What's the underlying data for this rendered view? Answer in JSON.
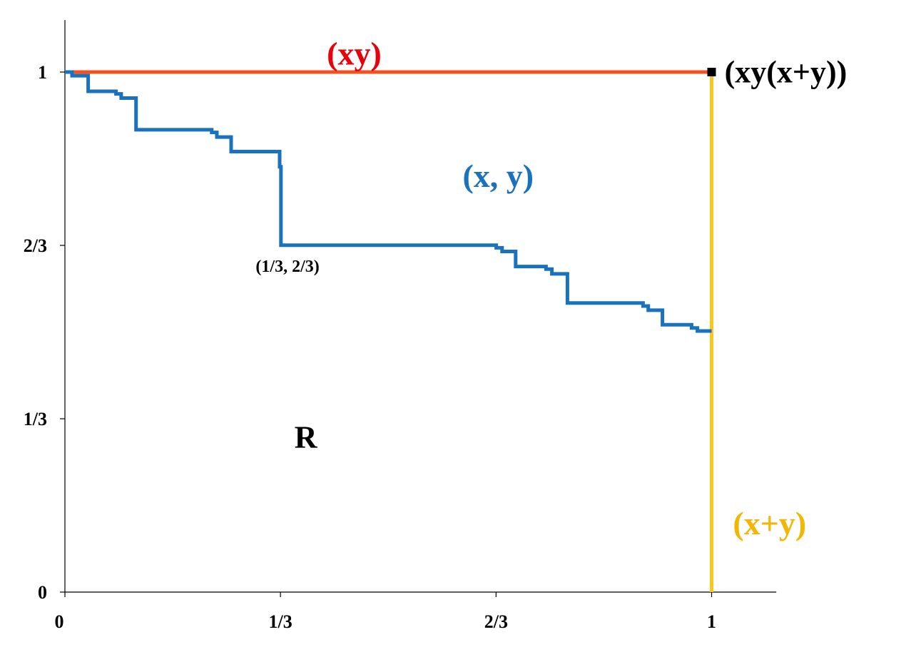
{
  "chart_data": {
    "type": "line",
    "title": "",
    "xlabel": "",
    "ylabel": "",
    "xlim": [
      0,
      1.1
    ],
    "ylim": [
      0,
      1.1
    ],
    "grid": false,
    "x_ticks": [
      {
        "value": 0,
        "label": "0"
      },
      {
        "value": 0.3333,
        "label": "1/3"
      },
      {
        "value": 0.6667,
        "label": "2/3"
      },
      {
        "value": 1,
        "label": "1"
      }
    ],
    "y_ticks": [
      {
        "value": 0,
        "label": "0"
      },
      {
        "value": 0.3333,
        "label": "1/3"
      },
      {
        "value": 0.6667,
        "label": "2/3"
      },
      {
        "value": 1,
        "label": "1"
      }
    ],
    "series": [
      {
        "name": "(xy)",
        "color": "#F4511E",
        "points": [
          [
            0,
            1
          ],
          [
            1,
            1
          ]
        ]
      },
      {
        "name": "(x+y)",
        "color": "#F9C81E",
        "points": [
          [
            1,
            0
          ],
          [
            1,
            1
          ]
        ]
      },
      {
        "name": "(x, y)",
        "color": "#1A72BF",
        "step": true,
        "points": [
          [
            0,
            1
          ],
          [
            0.011,
            1
          ],
          [
            0.011,
            0.993
          ],
          [
            0.036,
            0.993
          ],
          [
            0.036,
            0.963
          ],
          [
            0.079,
            0.963
          ],
          [
            0.079,
            0.958
          ],
          [
            0.087,
            0.958
          ],
          [
            0.087,
            0.95
          ],
          [
            0.11,
            0.95
          ],
          [
            0.11,
            0.889
          ],
          [
            0.227,
            0.889
          ],
          [
            0.227,
            0.884
          ],
          [
            0.235,
            0.884
          ],
          [
            0.235,
            0.875
          ],
          [
            0.257,
            0.875
          ],
          [
            0.257,
            0.847
          ],
          [
            0.332,
            0.847
          ],
          [
            0.332,
            0.818
          ],
          [
            0.334,
            0.818
          ],
          [
            0.334,
            0.667
          ],
          [
            0.667,
            0.667
          ],
          [
            0.667,
            0.662
          ],
          [
            0.676,
            0.662
          ],
          [
            0.676,
            0.655
          ],
          [
            0.697,
            0.655
          ],
          [
            0.697,
            0.626
          ],
          [
            0.744,
            0.626
          ],
          [
            0.744,
            0.621
          ],
          [
            0.753,
            0.621
          ],
          [
            0.753,
            0.612
          ],
          [
            0.777,
            0.612
          ],
          [
            0.777,
            0.556
          ],
          [
            0.894,
            0.556
          ],
          [
            0.894,
            0.55
          ],
          [
            0.902,
            0.55
          ],
          [
            0.902,
            0.542
          ],
          [
            0.924,
            0.542
          ],
          [
            0.924,
            0.514
          ],
          [
            0.969,
            0.514
          ],
          [
            0.969,
            0.508
          ],
          [
            0.978,
            0.508
          ],
          [
            0.978,
            0.502
          ],
          [
            1.0,
            0.502
          ]
        ]
      }
    ],
    "marker": {
      "x": 1,
      "y": 1,
      "label": "(xy(x+y))",
      "color": "#000000"
    },
    "annotations": [
      {
        "text": "(xy)",
        "x": 0.405,
        "y": 1.035,
        "color": "#E8000B",
        "size": 46
      },
      {
        "text": "(xy(x+y))",
        "x": 1.02,
        "y": 1.0,
        "color": "#000000",
        "size": 44
      },
      {
        "text": "(x, y)",
        "x": 0.615,
        "y": 0.8,
        "color": "#1A72BF",
        "size": 46
      },
      {
        "text": "(1/3, 2/3)",
        "x": 0.295,
        "y": 0.627,
        "color": "#000000",
        "size": 24
      },
      {
        "text": "R",
        "x": 0.355,
        "y": 0.298,
        "color": "#000000",
        "size": 44,
        "normal": true
      },
      {
        "text": "(x+y)",
        "x": 1.033,
        "y": 0.132,
        "color": "#F2B705",
        "size": 46
      }
    ]
  }
}
